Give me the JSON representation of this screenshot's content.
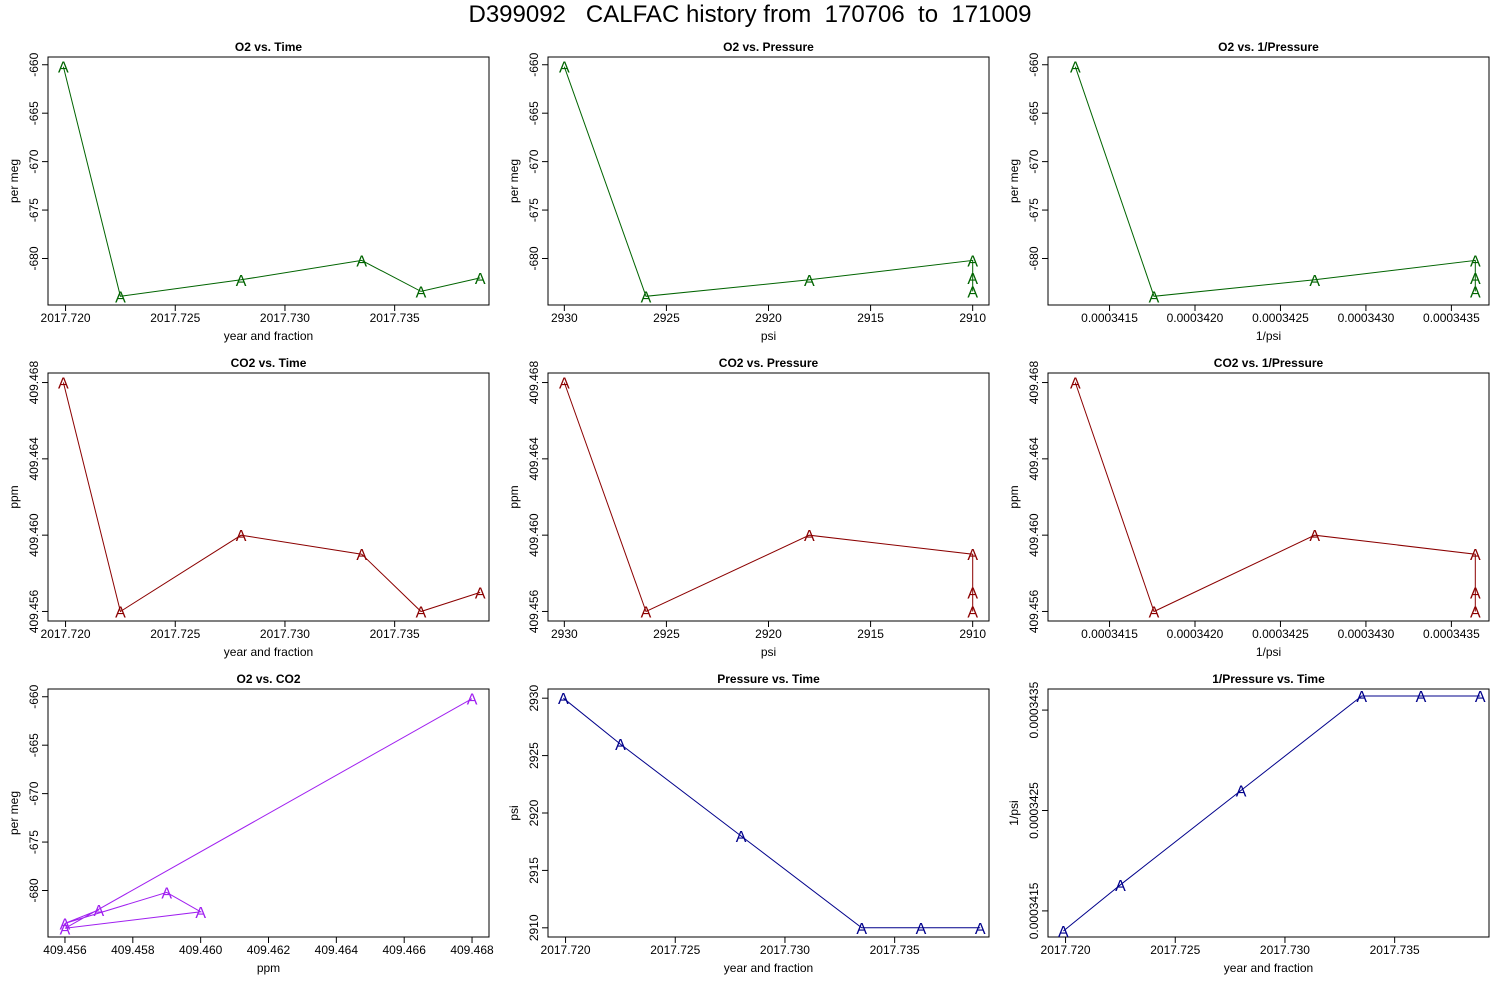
{
  "title": "D399092   CALFAC history from  170706  to  171009",
  "colors": {
    "o2": "#006400",
    "co2": "#8b0000",
    "o2co2": "#a020f0",
    "pressure": "#00008b"
  },
  "point_symbol": "A",
  "chart_data": [
    {
      "id": "o2-time",
      "type": "line",
      "title": "O2 vs. Time",
      "xlabel": "year and fraction",
      "ylabel": "per meg",
      "xlim": [
        2017.7192,
        2017.7393
      ],
      "ylim": [
        -684.8,
        -659.2
      ],
      "reverse_x": false,
      "color": "o2",
      "xticks": [
        "2017.720",
        "2017.725",
        "2017.730",
        "2017.735"
      ],
      "yticks": [
        "-680",
        "-675",
        "-670",
        "-665",
        "-660"
      ],
      "x": [
        2017.7199,
        2017.7225,
        2017.728,
        2017.7335,
        2017.7362,
        2017.7389
      ],
      "y": [
        -660.2,
        -683.9,
        -682.2,
        -680.2,
        -683.4,
        -682.0
      ]
    },
    {
      "id": "o2-pressure",
      "type": "line",
      "title": "O2 vs. Pressure",
      "xlabel": "psi",
      "ylabel": "per meg",
      "xlim": [
        2909.2,
        2930.8
      ],
      "ylim": [
        -684.8,
        -659.2
      ],
      "reverse_x": true,
      "color": "o2",
      "xticks": [
        "2930",
        "2925",
        "2920",
        "2915",
        "2910"
      ],
      "yticks": [
        "-680",
        "-675",
        "-670",
        "-665",
        "-660"
      ],
      "x": [
        2930,
        2926,
        2918,
        2910,
        2910,
        2910
      ],
      "y": [
        -660.2,
        -683.9,
        -682.2,
        -680.2,
        -683.4,
        -682.0
      ]
    },
    {
      "id": "o2-invpressure",
      "type": "line",
      "title": "O2 vs. 1/Pressure",
      "xlabel": "1/psi",
      "ylabel": "per meg",
      "xlim": [
        0.00034114,
        0.00034372
      ],
      "ylim": [
        -684.8,
        -659.2
      ],
      "reverse_x": false,
      "color": "o2",
      "xticks": [
        "0.0003415",
        "0.0003420",
        "0.0003425",
        "0.0003430",
        "0.0003435"
      ],
      "yticks": [
        "-680",
        "-675",
        "-670",
        "-665",
        "-660"
      ],
      "x": [
        0.0003413,
        0.00034176,
        0.0003427,
        0.00034364,
        0.00034364,
        0.00034364
      ],
      "y": [
        -660.2,
        -683.9,
        -682.2,
        -680.2,
        -683.4,
        -682.0
      ]
    },
    {
      "id": "co2-time",
      "type": "line",
      "title": "CO2 vs. Time",
      "xlabel": "year and fraction",
      "ylabel": "ppm",
      "xlim": [
        2017.7192,
        2017.7393
      ],
      "ylim": [
        409.4555,
        409.4685
      ],
      "reverse_x": false,
      "color": "co2",
      "xticks": [
        "2017.720",
        "2017.725",
        "2017.730",
        "2017.735"
      ],
      "yticks": [
        "409.456",
        "409.460",
        "409.464",
        "409.468"
      ],
      "x": [
        2017.7199,
        2017.7225,
        2017.728,
        2017.7335,
        2017.7362,
        2017.7389
      ],
      "y": [
        409.468,
        409.456,
        409.46,
        409.459,
        409.456,
        409.457
      ]
    },
    {
      "id": "co2-pressure",
      "type": "line",
      "title": "CO2 vs. Pressure",
      "xlabel": "psi",
      "ylabel": "ppm",
      "xlim": [
        2909.2,
        2930.8
      ],
      "ylim": [
        409.4555,
        409.4685
      ],
      "reverse_x": true,
      "color": "co2",
      "xticks": [
        "2930",
        "2925",
        "2920",
        "2915",
        "2910"
      ],
      "yticks": [
        "409.456",
        "409.460",
        "409.464",
        "409.468"
      ],
      "x": [
        2930,
        2926,
        2918,
        2910,
        2910,
        2910
      ],
      "y": [
        409.468,
        409.456,
        409.46,
        409.459,
        409.456,
        409.457
      ]
    },
    {
      "id": "co2-invpressure",
      "type": "line",
      "title": "CO2 vs. 1/Pressure",
      "xlabel": "1/psi",
      "ylabel": "ppm",
      "xlim": [
        0.00034114,
        0.00034372
      ],
      "ylim": [
        409.4555,
        409.4685
      ],
      "reverse_x": false,
      "color": "co2",
      "xticks": [
        "0.0003415",
        "0.0003420",
        "0.0003425",
        "0.0003430",
        "0.0003435"
      ],
      "yticks": [
        "409.456",
        "409.460",
        "409.464",
        "409.468"
      ],
      "x": [
        0.0003413,
        0.00034176,
        0.0003427,
        0.00034364,
        0.00034364,
        0.00034364
      ],
      "y": [
        409.468,
        409.456,
        409.46,
        409.459,
        409.456,
        409.457
      ]
    },
    {
      "id": "o2-co2",
      "type": "line",
      "title": "O2 vs. CO2",
      "xlabel": "ppm",
      "ylabel": "per meg",
      "xlim": [
        409.4555,
        409.4685
      ],
      "ylim": [
        -684.8,
        -659.2
      ],
      "reverse_x": false,
      "color": "o2co2",
      "xticks": [
        "409.456",
        "409.458",
        "409.460",
        "409.462",
        "409.464",
        "409.466",
        "409.468"
      ],
      "yticks": [
        "-680",
        "-675",
        "-670",
        "-665",
        "-660"
      ],
      "x": [
        409.468,
        409.456,
        409.46,
        409.459,
        409.456,
        409.457
      ],
      "y": [
        -660.2,
        -683.9,
        -682.2,
        -680.2,
        -683.4,
        -682.0
      ]
    },
    {
      "id": "pressure-time",
      "type": "line",
      "title": "Pressure vs. Time",
      "xlabel": "year and fraction",
      "ylabel": "psi",
      "xlim": [
        2017.7192,
        2017.7393
      ],
      "ylim": [
        2909.2,
        2930.8
      ],
      "reverse_x": false,
      "color": "pressure",
      "xticks": [
        "2017.720",
        "2017.725",
        "2017.730",
        "2017.735"
      ],
      "yticks": [
        "2910",
        "2915",
        "2920",
        "2925",
        "2930"
      ],
      "x": [
        2017.7199,
        2017.7225,
        2017.728,
        2017.7335,
        2017.7362,
        2017.7389
      ],
      "y": [
        2930,
        2926,
        2918,
        2910,
        2910,
        2910
      ]
    },
    {
      "id": "invpressure-time",
      "type": "line",
      "title": "1/Pressure vs. Time",
      "xlabel": "year and fraction",
      "ylabel": "1/psi",
      "xlim": [
        2017.7192,
        2017.7393
      ],
      "ylim": [
        0.00034124,
        0.00034371
      ],
      "reverse_x": false,
      "color": "pressure",
      "xticks": [
        "2017.720",
        "2017.725",
        "2017.730",
        "2017.735"
      ],
      "yticks": [
        "0.0003415",
        "0.0003425",
        "0.0003435"
      ],
      "x": [
        2017.7199,
        2017.7225,
        2017.728,
        2017.7335,
        2017.7362,
        2017.7389
      ],
      "y": [
        0.0003413,
        0.00034176,
        0.0003427,
        0.00034364,
        0.00034364,
        0.00034364
      ]
    }
  ]
}
